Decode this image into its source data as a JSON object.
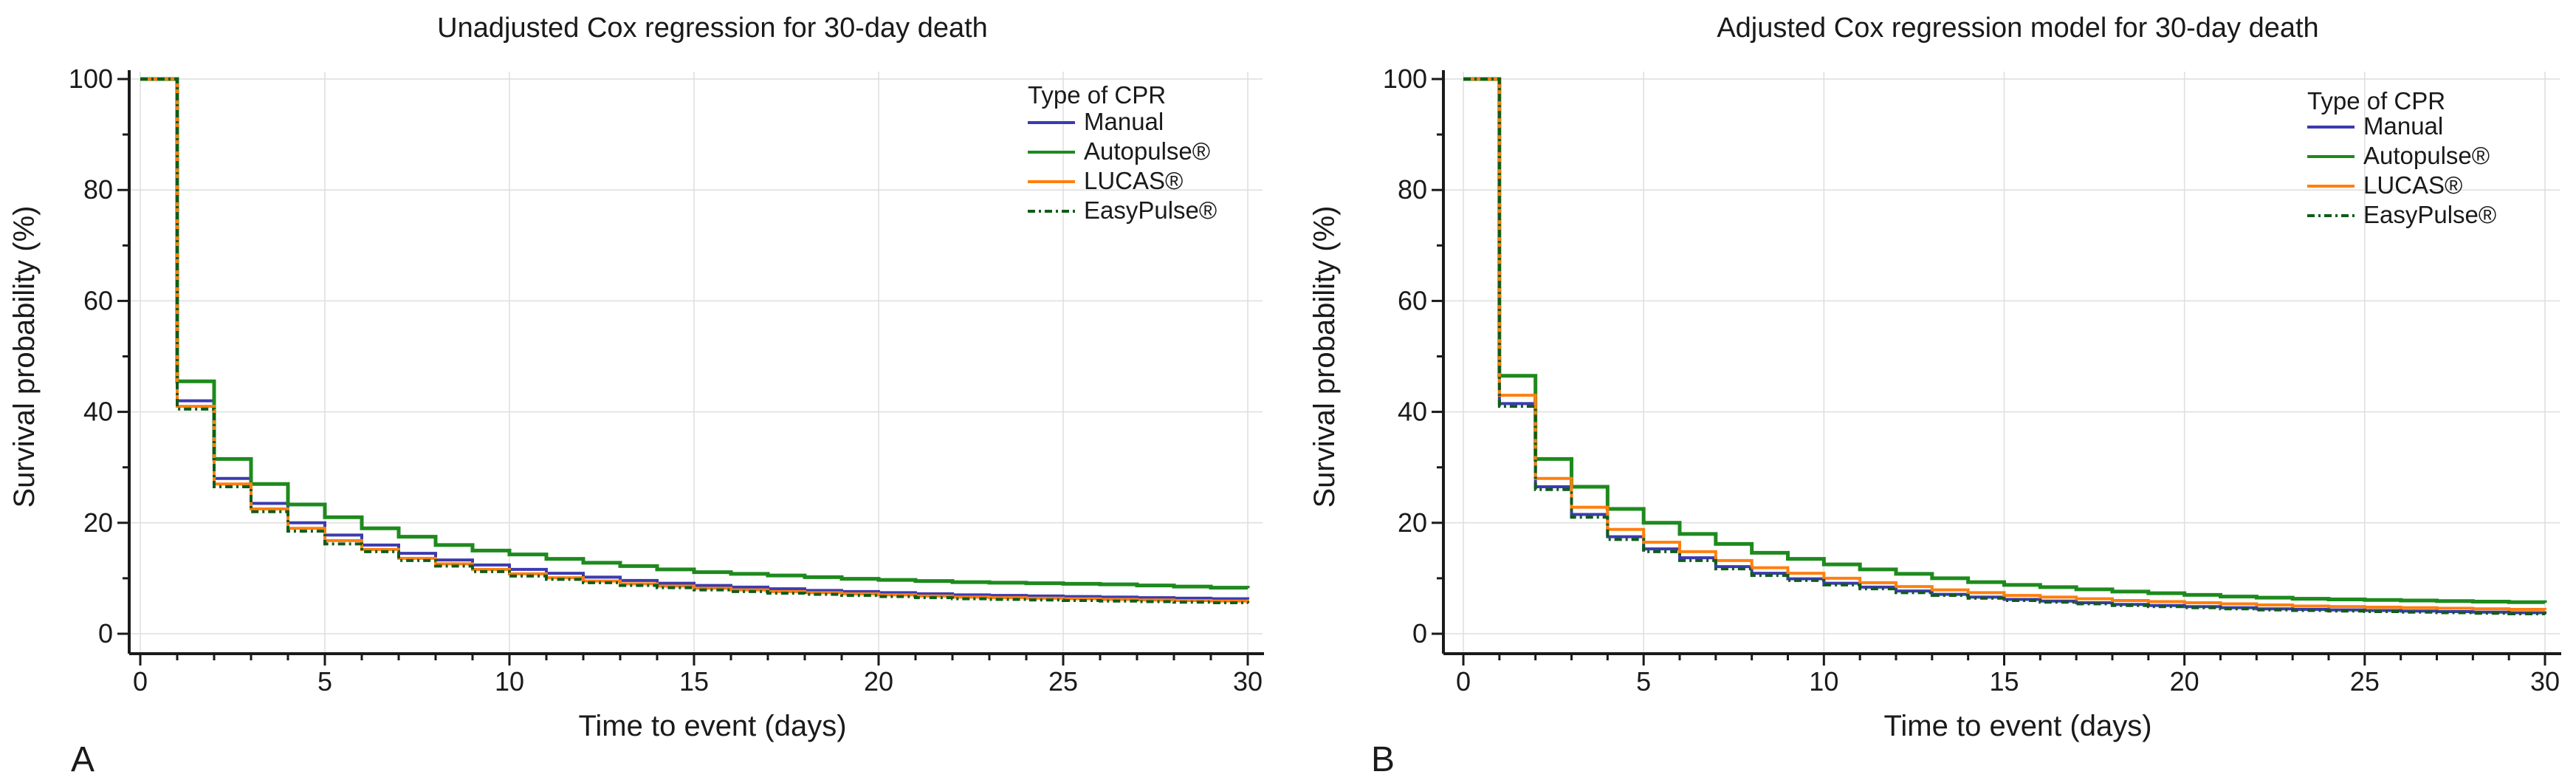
{
  "chart_data": [
    {
      "panel": "A",
      "type": "line",
      "step": true,
      "title": "Unadjusted Cox regression for 30-day death",
      "xlabel": "Time to event (days)",
      "ylabel": "Survival probability (%)",
      "xlim": [
        0,
        30
      ],
      "ylim": [
        0,
        100
      ],
      "xticks": [
        0,
        5,
        10,
        15,
        20,
        25,
        30
      ],
      "yticks": [
        0,
        20,
        40,
        60,
        80,
        100
      ],
      "grid": true,
      "legend_title": "Type of CPR",
      "legend_position": "top-right",
      "x": [
        0,
        1,
        2,
        3,
        4,
        5,
        6,
        7,
        8,
        9,
        10,
        11,
        12,
        13,
        14,
        15,
        16,
        17,
        18,
        19,
        20,
        21,
        22,
        23,
        24,
        25,
        26,
        27,
        28,
        29,
        30
      ],
      "series": [
        {
          "name": "Manual",
          "color": "#3b3bb0",
          "dash": "",
          "values": [
            100,
            42.0,
            28.0,
            23.5,
            20.0,
            17.8,
            16.0,
            14.5,
            13.3,
            12.4,
            11.6,
            10.9,
            10.2,
            9.6,
            9.1,
            8.7,
            8.4,
            8.1,
            7.8,
            7.6,
            7.4,
            7.2,
            7.0,
            6.9,
            6.8,
            6.7,
            6.6,
            6.5,
            6.4,
            6.3,
            6.2
          ]
        },
        {
          "name": "Autopulse®",
          "color": "#1d8a1d",
          "dash": "",
          "values": [
            100,
            45.5,
            31.5,
            27.0,
            23.3,
            21.0,
            19.0,
            17.5,
            16.0,
            15.0,
            14.3,
            13.5,
            12.8,
            12.2,
            11.6,
            11.1,
            10.8,
            10.5,
            10.2,
            9.9,
            9.7,
            9.5,
            9.3,
            9.2,
            9.1,
            9.0,
            8.9,
            8.7,
            8.5,
            8.3,
            8.2
          ]
        },
        {
          "name": "LUCAS®",
          "color": "#ff7f0e",
          "dash": "",
          "values": [
            100,
            41.0,
            27.0,
            22.5,
            19.0,
            16.8,
            15.2,
            13.6,
            12.6,
            11.6,
            10.8,
            10.1,
            9.5,
            9.0,
            8.6,
            8.2,
            7.9,
            7.6,
            7.4,
            7.2,
            7.0,
            6.8,
            6.6,
            6.5,
            6.4,
            6.3,
            6.2,
            6.1,
            6.0,
            5.9,
            5.8
          ]
        },
        {
          "name": "EasyPulse®",
          "color": "#0f5c1a",
          "dash": "10,5,3,5",
          "values": [
            100,
            40.5,
            26.5,
            22.0,
            18.5,
            16.2,
            14.8,
            13.2,
            12.2,
            11.2,
            10.4,
            9.8,
            9.2,
            8.7,
            8.3,
            7.9,
            7.6,
            7.3,
            7.1,
            6.9,
            6.7,
            6.5,
            6.3,
            6.2,
            6.1,
            6.0,
            5.9,
            5.8,
            5.7,
            5.6,
            5.5
          ]
        }
      ]
    },
    {
      "panel": "B",
      "type": "line",
      "step": true,
      "title": "Adjusted Cox regression model for 30-day death",
      "xlabel": "Time to event (days)",
      "ylabel": "Survival probability (%)",
      "xlim": [
        0,
        30
      ],
      "ylim": [
        0,
        100
      ],
      "xticks": [
        0,
        5,
        10,
        15,
        20,
        25,
        30
      ],
      "yticks": [
        0,
        20,
        40,
        60,
        80,
        100
      ],
      "grid": true,
      "legend_title": "Type of CPR",
      "legend_position": "top-right",
      "x": [
        0,
        1,
        2,
        3,
        4,
        5,
        6,
        7,
        8,
        9,
        10,
        11,
        12,
        13,
        14,
        15,
        16,
        17,
        18,
        19,
        20,
        21,
        22,
        23,
        24,
        25,
        26,
        27,
        28,
        29,
        30
      ],
      "series": [
        {
          "name": "Manual",
          "color": "#3b3bb0",
          "dash": "",
          "values": [
            100,
            41.5,
            26.5,
            21.5,
            17.5,
            15.3,
            13.7,
            12.1,
            10.9,
            9.9,
            9.1,
            8.4,
            7.7,
            7.1,
            6.6,
            6.2,
            5.9,
            5.6,
            5.3,
            5.1,
            4.9,
            4.7,
            4.5,
            4.4,
            4.3,
            4.2,
            4.1,
            4.0,
            3.9,
            3.8,
            3.7
          ]
        },
        {
          "name": "Autopulse®",
          "color": "#1d8a1d",
          "dash": "",
          "values": [
            100,
            46.5,
            31.5,
            26.5,
            22.5,
            20.0,
            18.0,
            16.2,
            14.6,
            13.5,
            12.5,
            11.6,
            10.8,
            10.0,
            9.3,
            8.8,
            8.4,
            8.0,
            7.6,
            7.3,
            7.0,
            6.7,
            6.5,
            6.3,
            6.2,
            6.1,
            6.0,
            5.9,
            5.8,
            5.7,
            5.6
          ]
        },
        {
          "name": "LUCAS®",
          "color": "#ff7f0e",
          "dash": "",
          "values": [
            100,
            43.0,
            28.0,
            22.8,
            18.8,
            16.5,
            14.8,
            13.2,
            11.9,
            10.9,
            10.0,
            9.2,
            8.5,
            7.9,
            7.4,
            6.9,
            6.6,
            6.3,
            6.0,
            5.8,
            5.6,
            5.4,
            5.2,
            5.0,
            4.9,
            4.8,
            4.7,
            4.6,
            4.5,
            4.4,
            4.3
          ]
        },
        {
          "name": "EasyPulse®",
          "color": "#0f5c1a",
          "dash": "10,5,3,5",
          "values": [
            100,
            41.0,
            26.0,
            21.0,
            17.0,
            14.8,
            13.2,
            11.7,
            10.5,
            9.6,
            8.8,
            8.1,
            7.4,
            6.9,
            6.4,
            6.0,
            5.7,
            5.4,
            5.1,
            4.9,
            4.7,
            4.5,
            4.3,
            4.2,
            4.1,
            4.0,
            3.9,
            3.8,
            3.7,
            3.6,
            3.5
          ]
        }
      ]
    }
  ]
}
